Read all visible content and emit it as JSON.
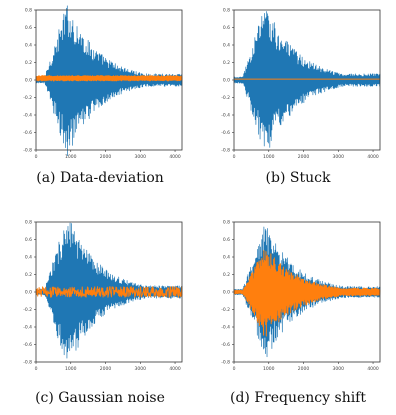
{
  "figure": {
    "colors": {
      "signal": "#1f77b4",
      "reference": "#ff7f0e",
      "frame": "#333333"
    }
  },
  "chart_data": [
    {
      "type": "line",
      "panel_label": "(a) Data-deviation",
      "series": [
        {
          "color": "#1f77b4",
          "shape": "burst",
          "peak": 0.9,
          "offset": 0
        },
        {
          "color": "#ff7f0e",
          "shape": "deviation",
          "level": 0.03,
          "offset": 0.02
        }
      ],
      "x_ticks": [
        "0",
        "1000",
        "2000",
        "3000",
        "4000"
      ],
      "y_ticks": [
        "0.8",
        "0.6",
        "0.4",
        "0.2",
        "0.0",
        "-0.2",
        "-0.4",
        "-0.6",
        "-0.8"
      ],
      "xlim": [
        0,
        4200
      ],
      "ylim": [
        -0.8,
        0.8
      ]
    },
    {
      "type": "line",
      "panel_label": "(b) Stuck",
      "series": [
        {
          "color": "#1f77b4",
          "shape": "burst",
          "peak": 0.9,
          "offset": 0
        },
        {
          "color": "#ff7f0e",
          "shape": "stuck",
          "level": 0.01,
          "offset": 0.01
        }
      ],
      "x_ticks": [
        "0",
        "1000",
        "2000",
        "3000",
        "4000"
      ],
      "y_ticks": [
        "0.8",
        "0.6",
        "0.4",
        "0.2",
        "0.0",
        "-0.2",
        "-0.4",
        "-0.6",
        "-0.8"
      ],
      "xlim": [
        0,
        4200
      ],
      "ylim": [
        -0.8,
        0.8
      ]
    },
    {
      "type": "line",
      "panel_label": "(c) Gaussian noise",
      "series": [
        {
          "color": "#1f77b4",
          "shape": "burst",
          "peak": 0.9,
          "offset": 0
        },
        {
          "color": "#ff7f0e",
          "shape": "noise",
          "level": 0.06,
          "offset": 0
        }
      ],
      "x_ticks": [
        "0",
        "1000",
        "2000",
        "3000",
        "4000"
      ],
      "y_ticks": [
        "0.8",
        "0.6",
        "0.4",
        "0.2",
        "0.0",
        "-0.2",
        "-0.4",
        "-0.6",
        "-0.8"
      ],
      "xlim": [
        0,
        4200
      ],
      "ylim": [
        -0.8,
        0.8
      ]
    },
    {
      "type": "line",
      "panel_label": "(d) Frequency shift",
      "series": [
        {
          "color": "#1f77b4",
          "shape": "burst",
          "peak": 0.8,
          "offset": 0
        },
        {
          "color": "#ff7f0e",
          "shape": "freqshift",
          "peak": 0.6,
          "offset": 0
        }
      ],
      "x_ticks": [
        "0",
        "1000",
        "2000",
        "3000",
        "4000"
      ],
      "y_ticks": [
        "0.8",
        "0.6",
        "0.4",
        "0.2",
        "0.0",
        "-0.2",
        "-0.4",
        "-0.6",
        "-0.8"
      ],
      "xlim": [
        0,
        4200
      ],
      "ylim": [
        -0.8,
        0.8
      ]
    }
  ]
}
